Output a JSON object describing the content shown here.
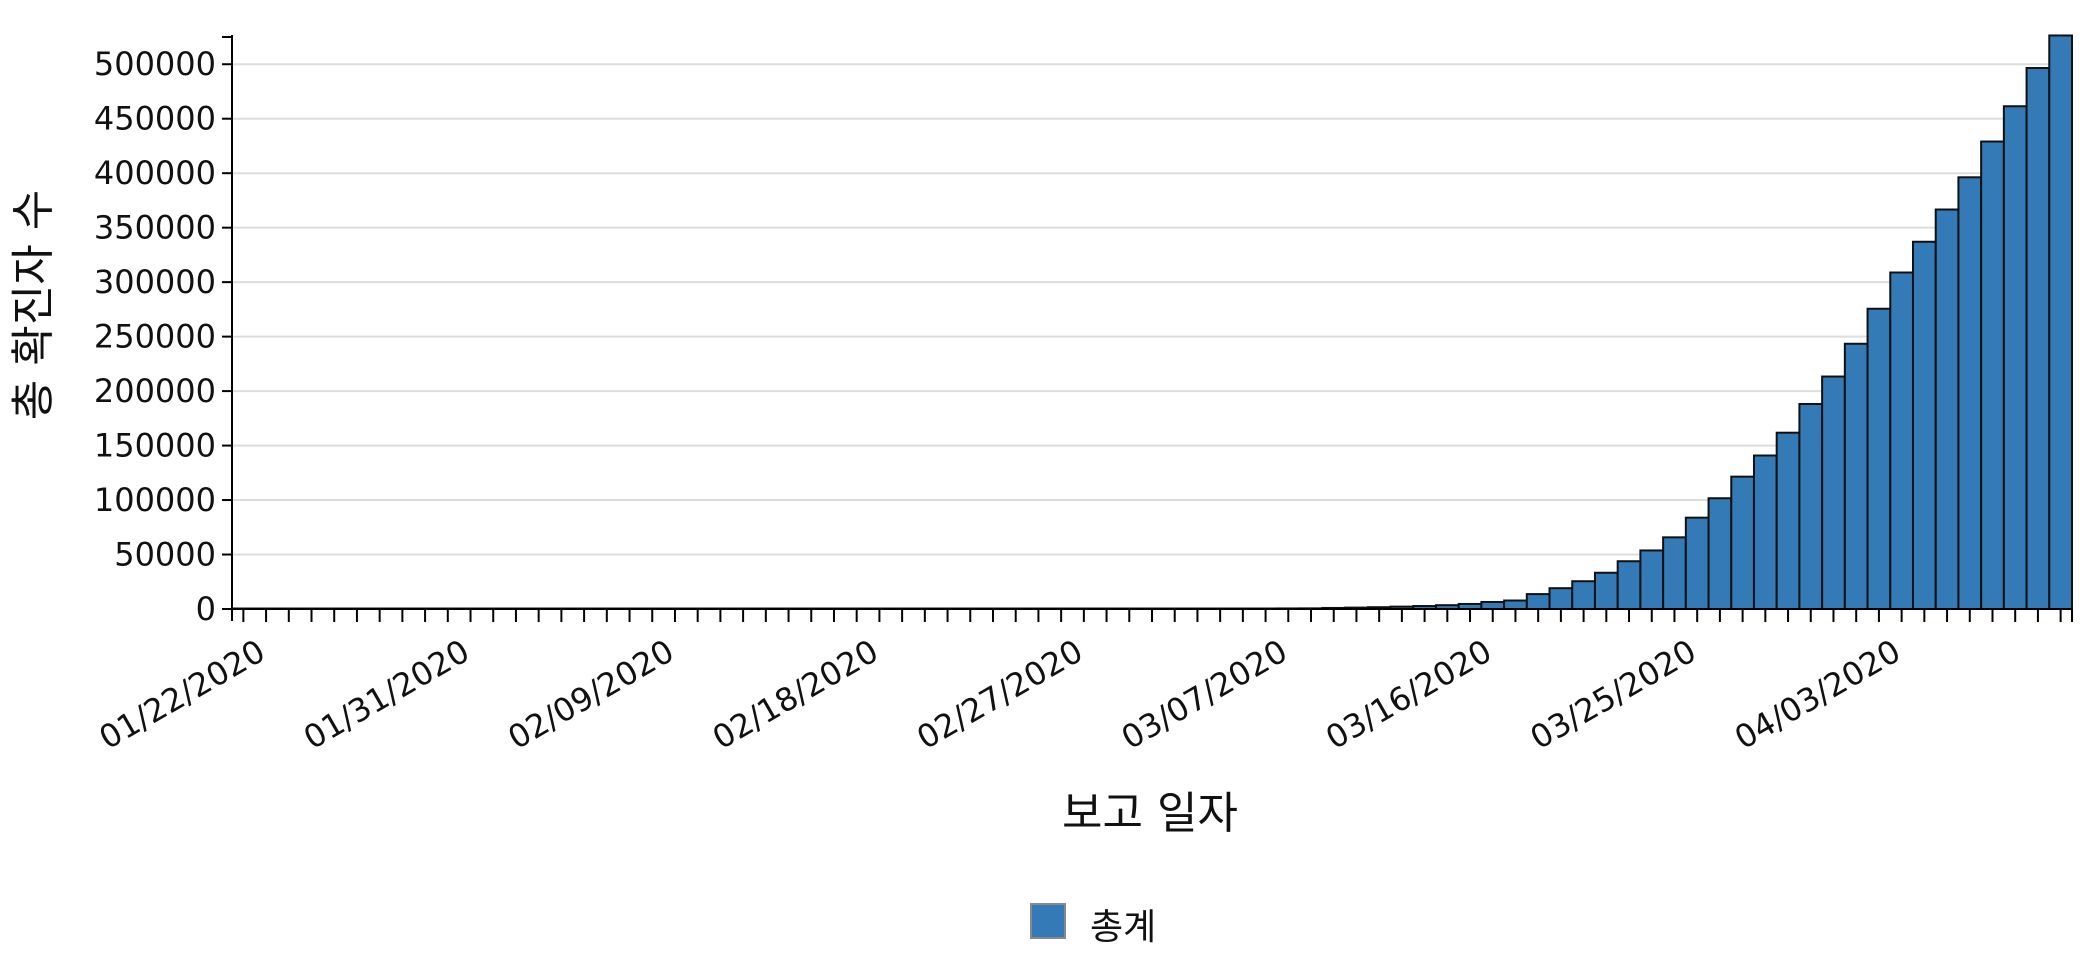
{
  "chart_data": {
    "type": "bar",
    "xlabel": "보고 일자",
    "ylabel": "총 확진자 수",
    "ylim": [
      0,
      525000
    ],
    "y_ticks": [
      0,
      50000,
      100000,
      150000,
      200000,
      250000,
      300000,
      350000,
      400000,
      450000,
      500000
    ],
    "x_tick_labels": [
      "01/22/2020",
      "01/31/2020",
      "02/09/2020",
      "02/18/2020",
      "02/27/2020",
      "03/07/2020",
      "03/16/2020",
      "03/25/2020",
      "04/03/2020"
    ],
    "grid": true,
    "legend_position": "bottom-center",
    "bar_color": "#337ab7",
    "series": [
      {
        "name": "총계",
        "color": "#337ab7",
        "dates": [
          "01/22/2020",
          "01/23/2020",
          "01/24/2020",
          "01/25/2020",
          "01/26/2020",
          "01/27/2020",
          "01/28/2020",
          "01/29/2020",
          "01/30/2020",
          "01/31/2020",
          "02/01/2020",
          "02/02/2020",
          "02/03/2020",
          "02/04/2020",
          "02/05/2020",
          "02/06/2020",
          "02/07/2020",
          "02/08/2020",
          "02/09/2020",
          "02/10/2020",
          "02/11/2020",
          "02/12/2020",
          "02/13/2020",
          "02/14/2020",
          "02/15/2020",
          "02/16/2020",
          "02/17/2020",
          "02/18/2020",
          "02/19/2020",
          "02/20/2020",
          "02/21/2020",
          "02/22/2020",
          "02/23/2020",
          "02/24/2020",
          "02/25/2020",
          "02/26/2020",
          "02/27/2020",
          "02/28/2020",
          "02/29/2020",
          "03/01/2020",
          "03/02/2020",
          "03/03/2020",
          "03/04/2020",
          "03/05/2020",
          "03/06/2020",
          "03/07/2020",
          "03/08/2020",
          "03/09/2020",
          "03/10/2020",
          "03/11/2020",
          "03/12/2020",
          "03/13/2020",
          "03/14/2020",
          "03/15/2020",
          "03/16/2020",
          "03/17/2020",
          "03/18/2020",
          "03/19/2020",
          "03/20/2020",
          "03/21/2020",
          "03/22/2020",
          "03/23/2020",
          "03/24/2020",
          "03/25/2020",
          "03/26/2020",
          "03/27/2020",
          "03/28/2020",
          "03/29/2020",
          "03/30/2020",
          "03/31/2020",
          "04/01/2020",
          "04/02/2020",
          "04/03/2020",
          "04/04/2020",
          "04/05/2020",
          "04/06/2020",
          "04/07/2020",
          "04/08/2020",
          "04/09/2020",
          "04/10/2020",
          "04/11/2020"
        ],
        "values": [
          1,
          1,
          2,
          2,
          5,
          5,
          5,
          5,
          5,
          7,
          8,
          8,
          11,
          11,
          11,
          11,
          11,
          11,
          11,
          11,
          12,
          12,
          13,
          13,
          13,
          13,
          13,
          13,
          13,
          13,
          15,
          15,
          15,
          51,
          51,
          57,
          58,
          60,
          68,
          74,
          98,
          118,
          149,
          217,
          262,
          402,
          518,
          583,
          959,
          1281,
          1663,
          2179,
          2726,
          3499,
          4632,
          6421,
          7786,
          13680,
          19101,
          25493,
          33276,
          43847,
          53740,
          65778,
          83836,
          101657,
          121478,
          140886,
          161807,
          188172,
          213372,
          243453,
          275586,
          308850,
          337072,
          366667,
          396223,
          429052,
          461437,
          496535,
          526396
        ]
      }
    ]
  }
}
